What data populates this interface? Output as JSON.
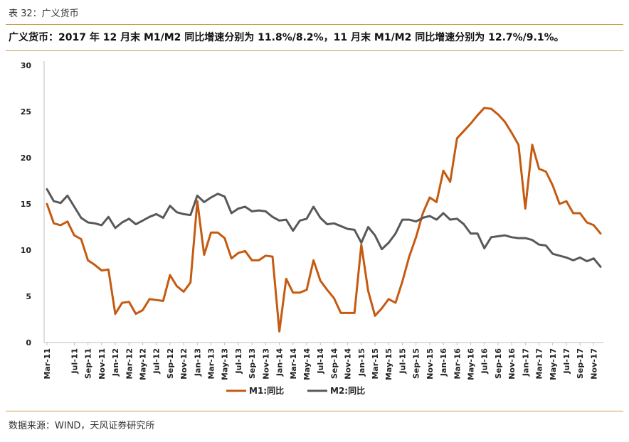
{
  "header": {
    "label": "表 32：广义货币"
  },
  "subtitle": "广义货币：2017 年 12 月末 M1/M2 同比增速分别为 11.8%/8.2%，11 月末 M1/M2 同比增速分别为 12.7%/9.1%。",
  "source": "数据来源：WIND，天风证券研究所",
  "colors": {
    "m1": "#c55a11",
    "m2": "#595959",
    "rule": "#c8a04a"
  },
  "chart_data": {
    "type": "line",
    "title": "",
    "xlabel": "",
    "ylabel": "",
    "ylim": [
      0,
      30
    ],
    "yticks": [
      "0",
      "5",
      "10",
      "15",
      "20",
      "25",
      "30"
    ],
    "grid": false,
    "legend_position": "bottom",
    "x_tick_labels": [
      "Mar-11",
      "Jul-11",
      "Sep-11",
      "Nov-11",
      "Jan-12",
      "Mar-12",
      "May-12",
      "Jul-12",
      "Sep-12",
      "Nov-12",
      "Jan-13",
      "Mar-13",
      "May-13",
      "Jul-13",
      "Sep-13",
      "Nov-13",
      "Jan-14",
      "Mar-14",
      "May-14",
      "Jul-14",
      "Sep-14",
      "Nov-14",
      "Jan-15",
      "Mar-15",
      "May-15",
      "Jul-15",
      "Sep-15",
      "Nov-15",
      "Jan-16",
      "Mar-16",
      "May-16",
      "Jul-16",
      "Sep-16",
      "Nov-16",
      "Jan-17",
      "Mar-17",
      "May-17",
      "Jul-17",
      "Sep-17",
      "Nov-17"
    ],
    "x": [
      "2011-03",
      "2011-04",
      "2011-05",
      "2011-06",
      "2011-07",
      "2011-08",
      "2011-09",
      "2011-10",
      "2011-11",
      "2011-12",
      "2012-01",
      "2012-02",
      "2012-03",
      "2012-04",
      "2012-05",
      "2012-06",
      "2012-07",
      "2012-08",
      "2012-09",
      "2012-10",
      "2012-11",
      "2012-12",
      "2013-01",
      "2013-02",
      "2013-03",
      "2013-04",
      "2013-05",
      "2013-06",
      "2013-07",
      "2013-08",
      "2013-09",
      "2013-10",
      "2013-11",
      "2013-12",
      "2014-01",
      "2014-02",
      "2014-03",
      "2014-04",
      "2014-05",
      "2014-06",
      "2014-07",
      "2014-08",
      "2014-09",
      "2014-10",
      "2014-11",
      "2014-12",
      "2015-01",
      "2015-02",
      "2015-03",
      "2015-04",
      "2015-05",
      "2015-06",
      "2015-07",
      "2015-08",
      "2015-09",
      "2015-10",
      "2015-11",
      "2015-12",
      "2016-01",
      "2016-02",
      "2016-03",
      "2016-04",
      "2016-05",
      "2016-06",
      "2016-07",
      "2016-08",
      "2016-09",
      "2016-10",
      "2016-11",
      "2016-12",
      "2017-01",
      "2017-02",
      "2017-03",
      "2017-04",
      "2017-05",
      "2017-06",
      "2017-07",
      "2017-08",
      "2017-09",
      "2017-10",
      "2017-11",
      "2017-12"
    ],
    "series": [
      {
        "name": "M1:同比",
        "color": "#c55a11",
        "values": [
          15.0,
          12.9,
          12.7,
          13.1,
          11.6,
          11.2,
          8.9,
          8.4,
          7.8,
          7.9,
          3.1,
          4.3,
          4.4,
          3.1,
          3.5,
          4.7,
          4.6,
          4.5,
          7.3,
          6.1,
          5.5,
          6.5,
          15.3,
          9.5,
          11.9,
          11.9,
          11.3,
          9.1,
          9.7,
          9.9,
          8.9,
          8.9,
          9.4,
          9.3,
          1.2,
          6.9,
          5.4,
          5.4,
          5.7,
          8.9,
          6.7,
          5.7,
          4.8,
          3.2,
          3.2,
          3.2,
          10.6,
          5.6,
          2.9,
          3.7,
          4.7,
          4.3,
          6.6,
          9.3,
          11.4,
          14.0,
          15.7,
          15.2,
          18.6,
          17.4,
          22.1,
          22.9,
          23.7,
          24.6,
          25.4,
          25.3,
          24.7,
          23.9,
          22.7,
          21.4,
          14.5,
          21.4,
          18.8,
          18.5,
          17.0,
          15.0,
          15.3,
          14.0,
          14.0,
          13.0,
          12.7,
          11.8
        ]
      },
      {
        "name": "M2:同比",
        "color": "#595959",
        "values": [
          16.6,
          15.3,
          15.1,
          15.9,
          14.7,
          13.5,
          13.0,
          12.9,
          12.7,
          13.6,
          12.4,
          13.0,
          13.4,
          12.8,
          13.2,
          13.6,
          13.9,
          13.5,
          14.8,
          14.1,
          13.9,
          13.8,
          15.9,
          15.2,
          15.7,
          16.1,
          15.8,
          14.0,
          14.5,
          14.7,
          14.2,
          14.3,
          14.2,
          13.6,
          13.2,
          13.3,
          12.1,
          13.2,
          13.4,
          14.7,
          13.5,
          12.8,
          12.9,
          12.6,
          12.3,
          12.2,
          10.8,
          12.5,
          11.6,
          10.1,
          10.8,
          11.8,
          13.3,
          13.3,
          13.1,
          13.5,
          13.7,
          13.3,
          14.0,
          13.3,
          13.4,
          12.8,
          11.8,
          11.8,
          10.2,
          11.4,
          11.5,
          11.6,
          11.4,
          11.3,
          11.3,
          11.1,
          10.6,
          10.5,
          9.6,
          9.4,
          9.2,
          8.9,
          9.2,
          8.8,
          9.1,
          8.2
        ]
      }
    ]
  }
}
